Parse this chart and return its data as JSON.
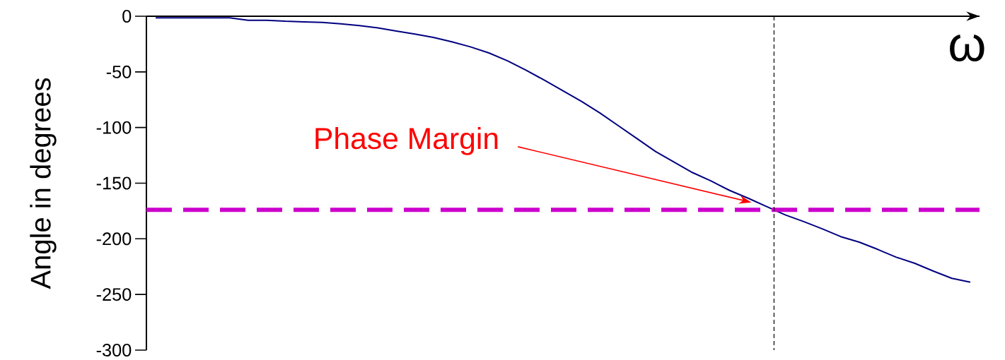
{
  "chart_data": {
    "type": "line",
    "ylabel": "Angle in degrees",
    "xlabel": "ω",
    "categories": [
      null,
      null,
      null,
      null,
      null,
      null,
      null,
      null,
      null,
      null,
      null,
      null,
      null,
      null,
      null,
      null,
      null,
      null,
      null,
      null,
      null,
      null,
      null,
      null,
      null,
      null,
      null,
      null,
      null,
      null,
      null,
      null,
      null,
      null,
      null,
      null,
      null,
      null,
      null,
      null,
      null,
      null,
      null,
      null,
      null
    ],
    "series": [
      {
        "color": "#000080",
        "values": [
          -1.5,
          -1.5,
          -1.5,
          -1.5,
          -1.5,
          -3.6,
          -3.6,
          -4.5,
          -5,
          -5.5,
          -6.8,
          -8.4,
          -10.5,
          -13.3,
          -16,
          -19,
          -23,
          -27.5,
          -33,
          -40,
          -48.5,
          -57.5,
          -67,
          -76.5,
          -87,
          -98.5,
          -110,
          -121.5,
          -131,
          -140.5,
          -148,
          -156.5,
          -163.5,
          -171,
          -178.5,
          -184.5,
          -191,
          -198,
          -203,
          -209.5,
          -216.5,
          -222,
          -229,
          -235.5,
          -239
        ]
      }
    ],
    "ylim": [
      -300,
      0
    ],
    "yticks": [
      -300,
      -250,
      -200,
      -150,
      -100,
      -50,
      0
    ],
    "ref_lines": [
      {
        "axis": "y",
        "value": -174,
        "color": "#cc00cc",
        "line_style": "dashed"
      }
    ],
    "annotations": [
      "Phase Margin"
    ]
  }
}
